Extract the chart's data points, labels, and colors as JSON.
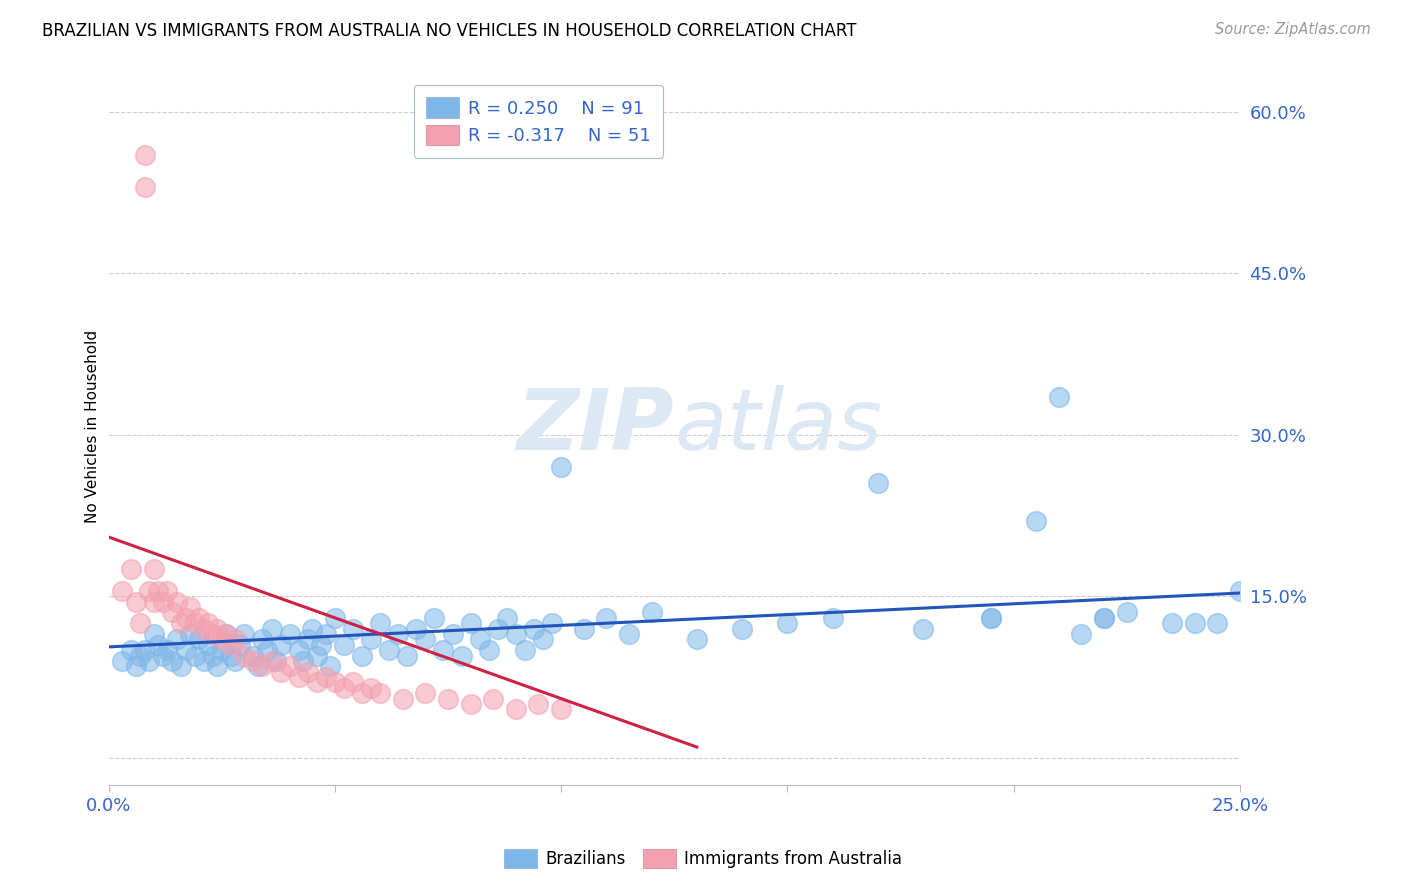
{
  "title": "BRAZILIAN VS IMMIGRANTS FROM AUSTRALIA NO VEHICLES IN HOUSEHOLD CORRELATION CHART",
  "source": "Source: ZipAtlas.com",
  "ylabel_label": "No Vehicles in Household",
  "right_ytick_vals": [
    0.0,
    0.15,
    0.3,
    0.45,
    0.6
  ],
  "right_ytick_labels": [
    "",
    "15.0%",
    "30.0%",
    "45.0%",
    "60.0%"
  ],
  "xmin": 0.0,
  "xmax": 0.25,
  "ymin": -0.025,
  "ymax": 0.64,
  "legend_blue_r": "R = 0.250",
  "legend_blue_n": "N = 91",
  "legend_pink_r": "R = -0.317",
  "legend_pink_n": "N = 51",
  "blue_color": "#7EB6E8",
  "pink_color": "#F4A0B0",
  "trendline_blue_color": "#2255BB",
  "trendline_pink_color": "#CC2244",
  "watermark_color": "#DCE9F5",
  "blue_trend_x": [
    0.0,
    0.25
  ],
  "blue_trend_y": [
    0.103,
    0.153
  ],
  "pink_trend_x": [
    0.0,
    0.13
  ],
  "pink_trend_y": [
    0.205,
    0.01
  ],
  "blue_x": [
    0.003,
    0.005,
    0.006,
    0.007,
    0.008,
    0.009,
    0.01,
    0.011,
    0.012,
    0.013,
    0.014,
    0.015,
    0.016,
    0.017,
    0.018,
    0.019,
    0.02,
    0.021,
    0.022,
    0.023,
    0.024,
    0.025,
    0.026,
    0.027,
    0.028,
    0.029,
    0.03,
    0.032,
    0.033,
    0.034,
    0.035,
    0.036,
    0.037,
    0.038,
    0.04,
    0.042,
    0.043,
    0.044,
    0.045,
    0.046,
    0.047,
    0.048,
    0.049,
    0.05,
    0.052,
    0.054,
    0.056,
    0.058,
    0.06,
    0.062,
    0.064,
    0.066,
    0.068,
    0.07,
    0.072,
    0.074,
    0.076,
    0.078,
    0.08,
    0.082,
    0.084,
    0.086,
    0.088,
    0.09,
    0.092,
    0.094,
    0.096,
    0.098,
    0.1,
    0.105,
    0.11,
    0.115,
    0.12,
    0.13,
    0.14,
    0.15,
    0.16,
    0.17,
    0.18,
    0.195,
    0.205,
    0.215,
    0.22,
    0.225,
    0.235,
    0.24,
    0.245,
    0.25,
    0.195,
    0.21,
    0.22
  ],
  "blue_y": [
    0.09,
    0.1,
    0.085,
    0.095,
    0.1,
    0.09,
    0.115,
    0.105,
    0.095,
    0.1,
    0.09,
    0.11,
    0.085,
    0.1,
    0.115,
    0.095,
    0.11,
    0.09,
    0.105,
    0.095,
    0.085,
    0.1,
    0.115,
    0.095,
    0.09,
    0.105,
    0.115,
    0.095,
    0.085,
    0.11,
    0.1,
    0.12,
    0.09,
    0.105,
    0.115,
    0.1,
    0.09,
    0.11,
    0.12,
    0.095,
    0.105,
    0.115,
    0.085,
    0.13,
    0.105,
    0.12,
    0.095,
    0.11,
    0.125,
    0.1,
    0.115,
    0.095,
    0.12,
    0.11,
    0.13,
    0.1,
    0.115,
    0.095,
    0.125,
    0.11,
    0.1,
    0.12,
    0.13,
    0.115,
    0.1,
    0.12,
    0.11,
    0.125,
    0.27,
    0.12,
    0.13,
    0.115,
    0.135,
    0.11,
    0.12,
    0.125,
    0.13,
    0.255,
    0.12,
    0.13,
    0.22,
    0.115,
    0.13,
    0.135,
    0.125,
    0.125,
    0.125,
    0.155,
    0.13,
    0.335,
    0.13
  ],
  "pink_x": [
    0.003,
    0.005,
    0.006,
    0.007,
    0.008,
    0.008,
    0.009,
    0.01,
    0.01,
    0.011,
    0.012,
    0.013,
    0.014,
    0.015,
    0.016,
    0.017,
    0.018,
    0.019,
    0.02,
    0.021,
    0.022,
    0.023,
    0.024,
    0.025,
    0.026,
    0.027,
    0.028,
    0.03,
    0.032,
    0.034,
    0.036,
    0.038,
    0.04,
    0.042,
    0.044,
    0.046,
    0.048,
    0.05,
    0.052,
    0.054,
    0.056,
    0.058,
    0.06,
    0.065,
    0.07,
    0.075,
    0.08,
    0.085,
    0.09,
    0.095,
    0.1
  ],
  "pink_y": [
    0.155,
    0.175,
    0.145,
    0.125,
    0.53,
    0.56,
    0.155,
    0.175,
    0.145,
    0.155,
    0.145,
    0.155,
    0.135,
    0.145,
    0.125,
    0.13,
    0.14,
    0.125,
    0.13,
    0.12,
    0.125,
    0.115,
    0.12,
    0.11,
    0.115,
    0.105,
    0.11,
    0.095,
    0.09,
    0.085,
    0.09,
    0.08,
    0.085,
    0.075,
    0.08,
    0.07,
    0.075,
    0.07,
    0.065,
    0.07,
    0.06,
    0.065,
    0.06,
    0.055,
    0.06,
    0.055,
    0.05,
    0.055,
    0.045,
    0.05,
    0.045
  ]
}
